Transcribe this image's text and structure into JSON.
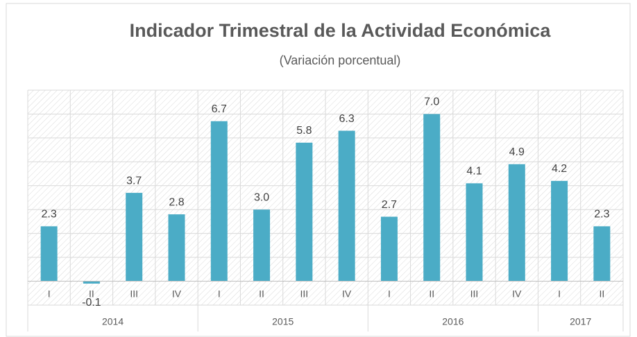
{
  "chart_data": {
    "type": "bar",
    "title": "Indicador Trimestral de la Actividad Económica",
    "subtitle": "(Variación porcentual)",
    "groups": [
      {
        "name": "2014",
        "categories": [
          "I",
          "II",
          "III",
          "IV"
        ]
      },
      {
        "name": "2015",
        "categories": [
          "I",
          "II",
          "III",
          "IV"
        ]
      },
      {
        "name": "2016",
        "categories": [
          "I",
          "II",
          "III",
          "IV"
        ]
      },
      {
        "name": "2017",
        "categories": [
          "I",
          "II"
        ]
      }
    ],
    "values": [
      2.3,
      -0.1,
      3.7,
      2.8,
      6.7,
      3.0,
      5.8,
      6.3,
      2.7,
      7.0,
      4.1,
      4.9,
      4.2,
      2.3
    ],
    "value_labels": [
      "2.3",
      "-0.1",
      "3.7",
      "2.8",
      "6.7",
      "3.0",
      "5.8",
      "6.3",
      "2.7",
      "7.0",
      "4.1",
      "4.9",
      "4.2",
      "2.3"
    ],
    "color": "#4bacc6",
    "ylim": [
      -1,
      8
    ],
    "yticks": [
      -1,
      0,
      1,
      2,
      3,
      4,
      5,
      6,
      7,
      8
    ],
    "grid": true
  }
}
